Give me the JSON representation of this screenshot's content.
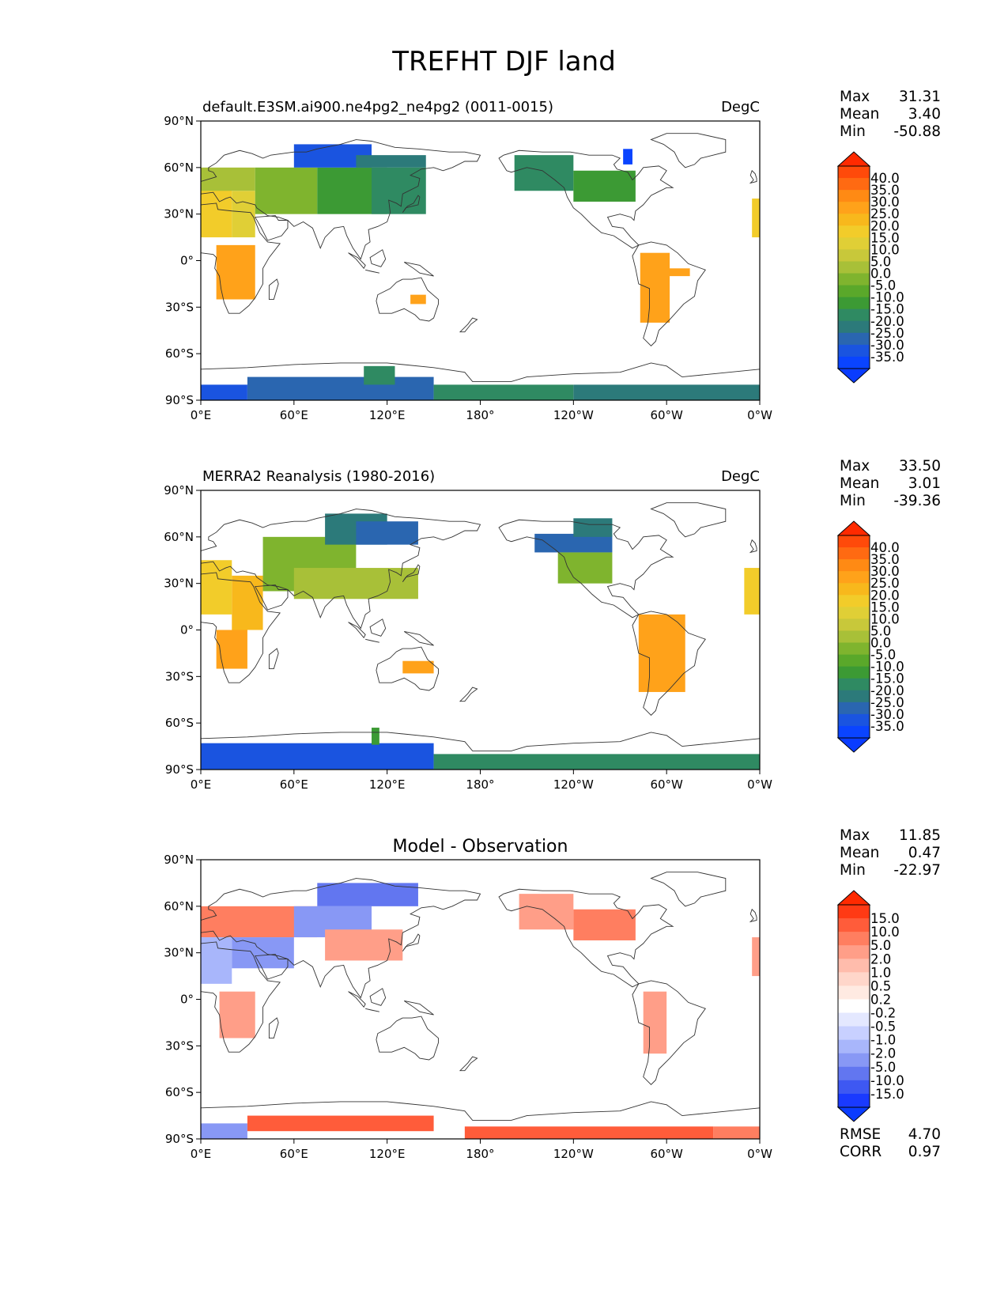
{
  "figure": {
    "title": "TREFHT DJF land"
  },
  "panels": [
    {
      "title_left": "default.E3SM.ai900.ne4pg2_ne4pg2 (0011-0015)",
      "title_center": "",
      "title_right": "DegC",
      "stats": {
        "max_label": "Max",
        "max": "31.31",
        "mean_label": "Mean",
        "mean": "3.40",
        "min_label": "Min",
        "min": "-50.88"
      },
      "colorbar": {
        "labels": [
          "40.0",
          "35.0",
          "30.0",
          "25.0",
          "20.0",
          "15.0",
          "10.0",
          "5.0",
          "0.0",
          "-5.0",
          "-10.0",
          "-15.0",
          "-20.0",
          "-25.0",
          "-30.0",
          "-35.0"
        ],
        "colors": [
          "#ff4a0a",
          "#ff6a12",
          "#ff8a14",
          "#ffa21a",
          "#f8b81c",
          "#f2cc2a",
          "#e0cf36",
          "#c8c83a",
          "#a8c038",
          "#7fb42e",
          "#5aa82a",
          "#3c9a34",
          "#2f8a62",
          "#2c7a7a",
          "#2a66b0",
          "#1a54e0",
          "#0a44ff"
        ],
        "over": "#ff2a00",
        "under": "#0a3cff"
      }
    },
    {
      "title_left": "MERRA2 Reanalysis (1980-2016)",
      "title_center": "",
      "title_right": "DegC",
      "stats": {
        "max_label": "Max",
        "max": "33.50",
        "mean_label": "Mean",
        "mean": "3.01",
        "min_label": "Min",
        "min": "-39.36"
      },
      "colorbar": {
        "labels": [
          "40.0",
          "35.0",
          "30.0",
          "25.0",
          "20.0",
          "15.0",
          "10.0",
          "5.0",
          "0.0",
          "-5.0",
          "-10.0",
          "-15.0",
          "-20.0",
          "-25.0",
          "-30.0",
          "-35.0"
        ],
        "colors": [
          "#ff4a0a",
          "#ff6a12",
          "#ff8a14",
          "#ffa21a",
          "#f8b81c",
          "#f2cc2a",
          "#e0cf36",
          "#c8c83a",
          "#a8c038",
          "#7fb42e",
          "#5aa82a",
          "#3c9a34",
          "#2f8a62",
          "#2c7a7a",
          "#2a66b0",
          "#1a54e0",
          "#0a44ff"
        ],
        "over": "#ff2a00",
        "under": "#0a3cff"
      }
    },
    {
      "title_left": "",
      "title_center": "Model - Observation",
      "title_right": "",
      "stats": {
        "max_label": "Max",
        "max": "11.85",
        "mean_label": "Mean",
        "mean": "0.47",
        "min_label": "Min",
        "min": "-22.97"
      },
      "extra": {
        "rmse_label": "RMSE",
        "rmse": "4.70",
        "corr_label": "CORR",
        "corr": "0.97"
      },
      "colorbar": {
        "labels": [
          "15.0",
          "10.0",
          "5.0",
          "2.0",
          "1.0",
          "0.5",
          "0.2",
          "-0.2",
          "-0.5",
          "-1.0",
          "-2.0",
          "-5.0",
          "-10.0",
          "-15.0"
        ],
        "colors": [
          "#ff3a14",
          "#ff5c3a",
          "#ff7e60",
          "#ff9e88",
          "#ffbcac",
          "#ffd6ca",
          "#ffeae2",
          "#ffffff",
          "#e4e8ff",
          "#c8d0ff",
          "#a8b6fb",
          "#8898f5",
          "#6276f0",
          "#3e58f2",
          "#1a3aff"
        ],
        "over": "#ff2a00",
        "under": "#0a3cff"
      }
    }
  ],
  "axes": {
    "lat_ticks": [
      "90°N",
      "60°N",
      "30°N",
      "0°",
      "30°S",
      "60°S",
      "90°S"
    ],
    "lon_ticks": [
      "0°E",
      "60°E",
      "120°E",
      "180°",
      "120°W",
      "60°W",
      "0°W"
    ]
  },
  "colors": {
    "land_outline": "#333333",
    "ocean": "#ffffff"
  }
}
